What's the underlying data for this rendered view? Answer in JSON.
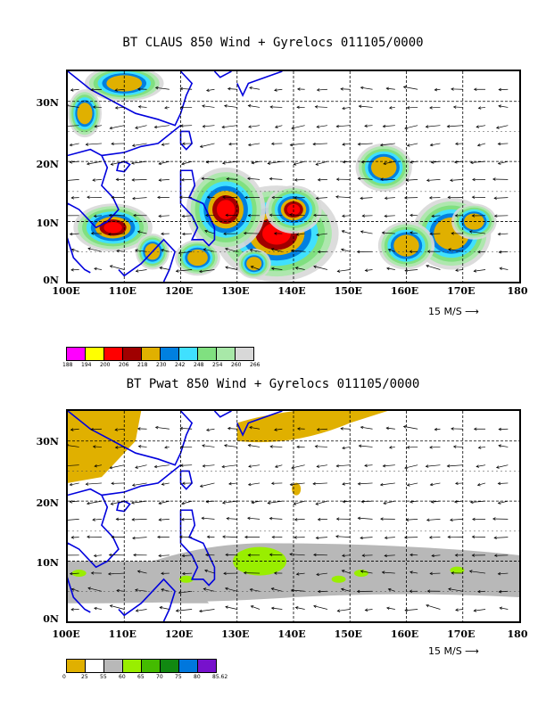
{
  "panels": [
    {
      "title": "BT CLAUS 850 Wind + Gyrelocs 011105/0000",
      "y_labels": [
        "30N",
        "20N",
        "10N",
        "0N"
      ],
      "x_labels": [
        "100E",
        "110E",
        "120E",
        "130E",
        "140E",
        "150E",
        "160E",
        "170E",
        "180"
      ],
      "vector_scale": "15 M/S ⟶",
      "colorbar": {
        "colors": [
          "#ff00ff",
          "#ffff00",
          "#ff0000",
          "#a00000",
          "#e0b000",
          "#0080e0",
          "#40e0ff",
          "#80e080",
          "#a8e8a8",
          "#d8d8d8"
        ],
        "labels": [
          "188",
          "194",
          "200",
          "206",
          "218",
          "230",
          "242",
          "248",
          "254",
          "260",
          "266"
        ]
      }
    },
    {
      "title": "BT Pwat 850 Wind + Gyrelocs 011105/0000",
      "y_labels": [
        "30N",
        "20N",
        "10N",
        "0N"
      ],
      "x_labels": [
        "100E",
        "110E",
        "120E",
        "130E",
        "140E",
        "150E",
        "160E",
        "170E",
        "180"
      ],
      "vector_scale": "15 M/S ⟶",
      "colorbar": {
        "colors": [
          "#e0b000",
          "#ffffff",
          "#b8b8b8",
          "#99ee00",
          "#44bb00",
          "#118811",
          "#0077dd",
          "#7711cc"
        ],
        "labels": [
          "0",
          "25",
          "55",
          "60",
          "65",
          "70",
          "75",
          "80",
          "85.62"
        ]
      }
    }
  ]
}
